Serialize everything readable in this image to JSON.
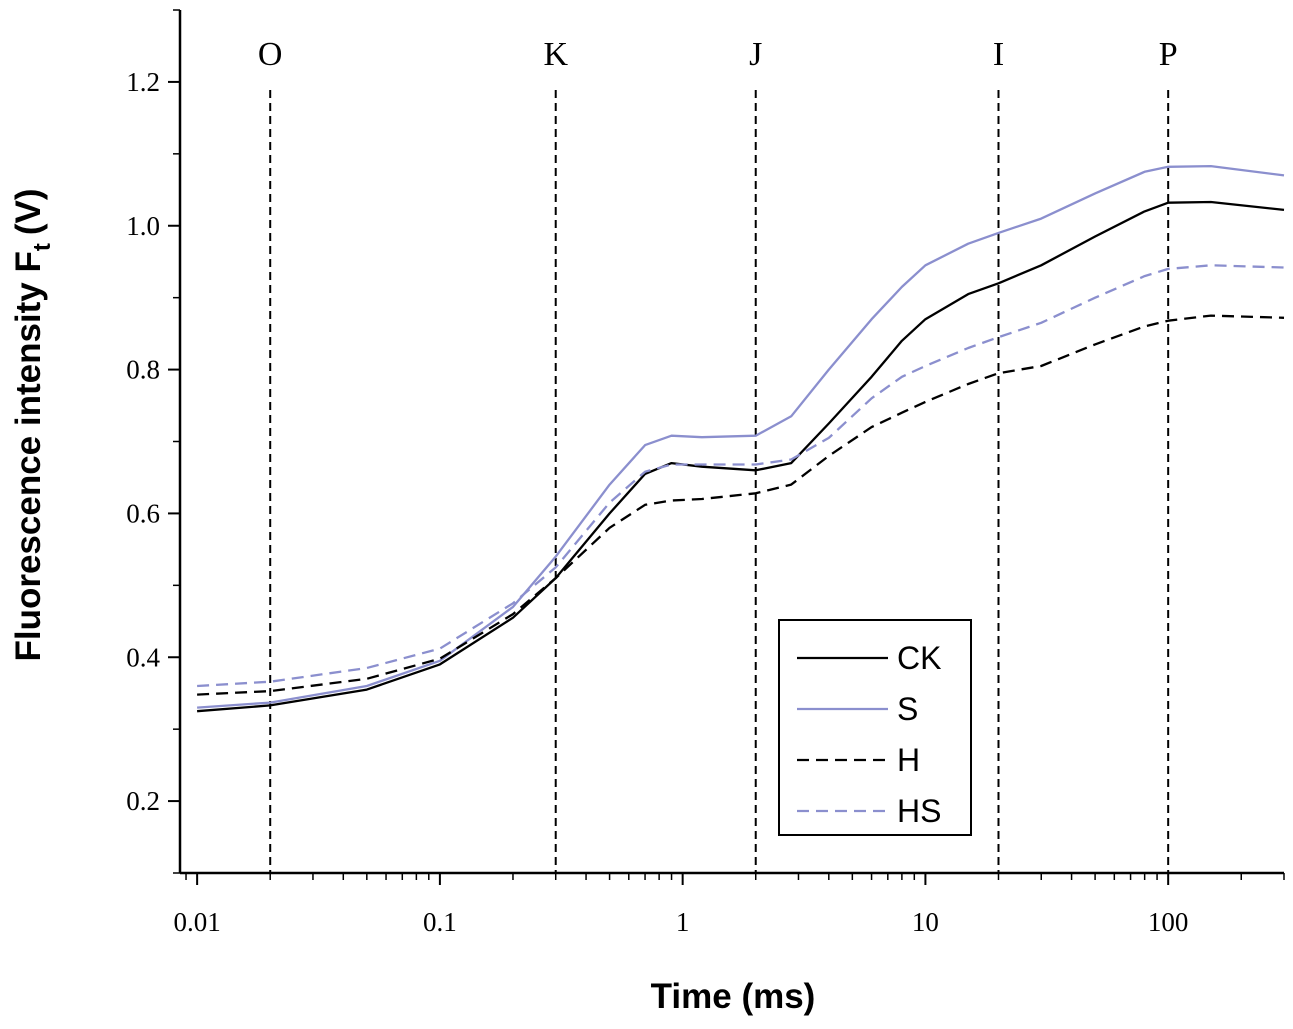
{
  "chart_data": {
    "type": "line",
    "title": "",
    "xlabel": "Time (ms)",
    "ylabel_main": "Fluorescence intensity F",
    "ylabel_sub": "t",
    "ylabel_unit": "(V)",
    "x_scale": "log",
    "xlim": [
      0.0085,
      300
    ],
    "ylim": [
      0.1,
      1.3
    ],
    "x_ticks": [
      0.01,
      0.1,
      1,
      10,
      100
    ],
    "x_tick_labels": [
      "0.01",
      "0.1",
      "1",
      "10",
      "100"
    ],
    "y_ticks": [
      0.2,
      0.4,
      0.6,
      0.8,
      1.0,
      1.2
    ],
    "y_tick_labels": [
      "0.2",
      "0.4",
      "0.6",
      "0.8",
      "1.0",
      "1.2"
    ],
    "phase_markers": [
      {
        "label": "O",
        "x": 0.02
      },
      {
        "label": "K",
        "x": 0.3
      },
      {
        "label": "J",
        "x": 2
      },
      {
        "label": "I",
        "x": 20
      },
      {
        "label": "P",
        "x": 100
      }
    ],
    "series": [
      {
        "name": "CK",
        "color": "#000000",
        "dash": "solid",
        "x": [
          0.01,
          0.02,
          0.05,
          0.1,
          0.2,
          0.3,
          0.5,
          0.7,
          0.9,
          1.2,
          2,
          2.8,
          4,
          6,
          8,
          10,
          15,
          20,
          30,
          50,
          80,
          100,
          150,
          300
        ],
        "y": [
          0.325,
          0.333,
          0.355,
          0.39,
          0.455,
          0.51,
          0.6,
          0.655,
          0.67,
          0.665,
          0.66,
          0.67,
          0.725,
          0.79,
          0.84,
          0.87,
          0.905,
          0.92,
          0.945,
          0.985,
          1.02,
          1.032,
          1.033,
          1.022
        ]
      },
      {
        "name": "S",
        "color": "#8b8fce",
        "dash": "solid",
        "x": [
          0.01,
          0.02,
          0.05,
          0.1,
          0.2,
          0.3,
          0.5,
          0.7,
          0.9,
          1.2,
          2,
          2.8,
          4,
          6,
          8,
          10,
          15,
          20,
          30,
          50,
          80,
          100,
          150,
          300
        ],
        "y": [
          0.33,
          0.337,
          0.36,
          0.395,
          0.47,
          0.54,
          0.64,
          0.695,
          0.708,
          0.706,
          0.708,
          0.735,
          0.8,
          0.87,
          0.915,
          0.945,
          0.975,
          0.99,
          1.01,
          1.045,
          1.075,
          1.082,
          1.083,
          1.07
        ]
      },
      {
        "name": "H",
        "color": "#000000",
        "dash": "dashed",
        "x": [
          0.01,
          0.02,
          0.05,
          0.1,
          0.2,
          0.3,
          0.5,
          0.7,
          0.9,
          1.2,
          2,
          2.8,
          4,
          6,
          8,
          10,
          15,
          20,
          30,
          50,
          80,
          100,
          150,
          300
        ],
        "y": [
          0.348,
          0.353,
          0.37,
          0.398,
          0.46,
          0.51,
          0.58,
          0.612,
          0.618,
          0.62,
          0.628,
          0.64,
          0.68,
          0.72,
          0.74,
          0.755,
          0.78,
          0.795,
          0.805,
          0.835,
          0.86,
          0.868,
          0.875,
          0.872
        ]
      },
      {
        "name": "HS",
        "color": "#8b8fce",
        "dash": "dashed",
        "x": [
          0.01,
          0.02,
          0.05,
          0.1,
          0.2,
          0.3,
          0.5,
          0.7,
          0.9,
          1.2,
          2,
          2.8,
          4,
          6,
          8,
          10,
          15,
          20,
          30,
          50,
          80,
          100,
          150,
          300
        ],
        "y": [
          0.36,
          0.366,
          0.385,
          0.412,
          0.475,
          0.525,
          0.615,
          0.658,
          0.668,
          0.668,
          0.668,
          0.675,
          0.705,
          0.76,
          0.79,
          0.805,
          0.83,
          0.845,
          0.865,
          0.9,
          0.93,
          0.94,
          0.945,
          0.942
        ]
      }
    ],
    "legend": {
      "position": "lower-right",
      "entries": [
        "CK",
        "S",
        "H",
        "HS"
      ]
    }
  }
}
